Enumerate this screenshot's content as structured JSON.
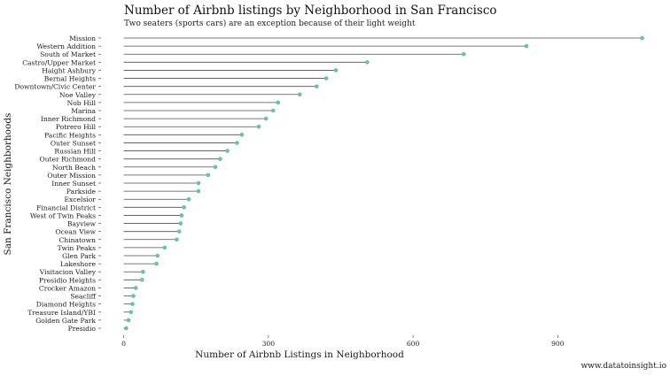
{
  "chart": {
    "title": "Number of Airbnb listings by Neighborhood in San Francisco",
    "subtitle": "Two seaters (sports cars) are an exception because of their light weight",
    "caption": "www.datatoinsight.io"
  },
  "chart_data": {
    "type": "lollipop",
    "orientation": "horizontal",
    "title": "Number of Airbnb listings by Neighborhood in San Francisco",
    "subtitle": "Two seaters (sports cars) are an exception because of their light weight",
    "xlabel": "Number of Airbnb Listings in Neighborhood",
    "ylabel": "San Francisco Neighborhoods",
    "xlim": [
      -25,
      1085
    ],
    "xticks": [
      0,
      300,
      600,
      900
    ],
    "grid": false,
    "legend": "none",
    "colors": {
      "point": "#66c2a5",
      "segment": "#4d4d4d",
      "text": "#1a1a1a"
    },
    "categories": [
      "Mission",
      "Western Addition",
      "South of Market",
      "Castro/Upper Market",
      "Haight Ashbury",
      "Bernal Heights",
      "Downtown/Civic Center",
      "Noe Valley",
      "Nob Hill",
      "Marina",
      "Inner Richmond",
      "Potrero Hill",
      "Pacific Heights",
      "Outer Sunset",
      "Russian Hill",
      "Outer Richmond",
      "North Beach",
      "Outer Mission",
      "Inner Sunset",
      "Parkside",
      "Excelsior",
      "Financial District",
      "West of Twin Peaks",
      "Bayview",
      "Ocean View",
      "Chinatown",
      "Twin Peaks",
      "Glen Park",
      "Lakeshore",
      "Visitacion Valley",
      "Presidio Heights",
      "Crocker Amazon",
      "Seacliff",
      "Diamond Heights",
      "Treasure Island/YBI",
      "Golden Gate Park",
      "Presidio"
    ],
    "values": [
      1075,
      835,
      705,
      505,
      440,
      420,
      400,
      365,
      320,
      310,
      295,
      280,
      245,
      235,
      215,
      200,
      190,
      175,
      155,
      155,
      135,
      125,
      120,
      118,
      115,
      110,
      85,
      70,
      68,
      40,
      38,
      25,
      20,
      18,
      15,
      10,
      5
    ]
  }
}
